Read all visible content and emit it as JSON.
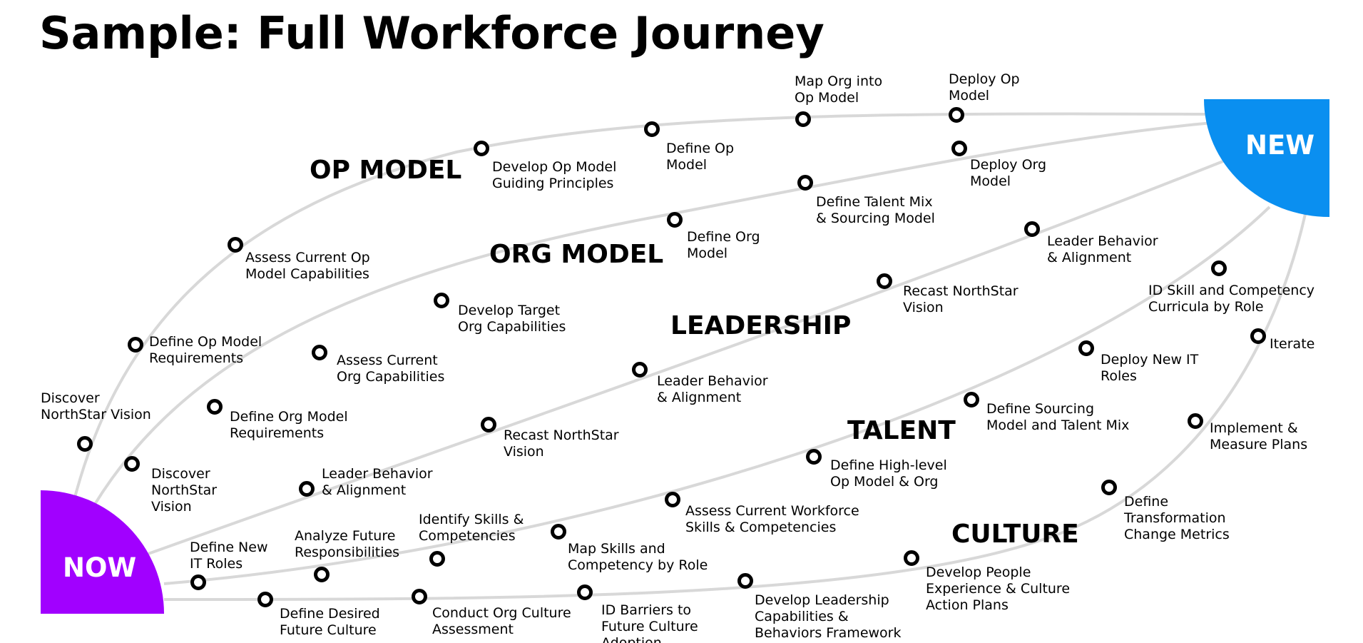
{
  "title": "Sample: Full Workforce Journey",
  "endpoints": {
    "now": {
      "label": "NOW",
      "color": "#A100FF"
    },
    "new": {
      "label": "NEW",
      "color": "#0A8FF0"
    }
  },
  "sections": [
    {
      "id": "op-model",
      "label": "OP MODEL"
    },
    {
      "id": "org-model",
      "label": "ORG MODEL"
    },
    {
      "id": "leadership",
      "label": "LEADERSHIP"
    },
    {
      "id": "talent",
      "label": "TALENT"
    },
    {
      "id": "culture",
      "label": "CULTURE"
    }
  ],
  "milestones": [
    {
      "id": "op-discover",
      "lines": [
        "Discover",
        "NorthStar Vision"
      ]
    },
    {
      "id": "op-define-req",
      "lines": [
        "Define Op Model",
        "Requirements"
      ]
    },
    {
      "id": "op-assess",
      "lines": [
        "Assess Current Op",
        "Model Capabilities"
      ]
    },
    {
      "id": "op-principles",
      "lines": [
        "Develop Op Model",
        "Guiding Principles"
      ]
    },
    {
      "id": "op-define",
      "lines": [
        "Define Op",
        "Model"
      ]
    },
    {
      "id": "op-map",
      "lines": [
        "Map Org into",
        "Op Model"
      ]
    },
    {
      "id": "op-deploy",
      "lines": [
        "Deploy Op",
        "Model"
      ]
    },
    {
      "id": "org-discover",
      "lines": [
        "Discover",
        "NorthStar",
        "Vision"
      ]
    },
    {
      "id": "org-define-req",
      "lines": [
        "Define Org Model",
        "Requirements"
      ]
    },
    {
      "id": "org-assess",
      "lines": [
        "Assess Current",
        "Org Capabilities"
      ]
    },
    {
      "id": "org-target",
      "lines": [
        "Develop Target",
        "Org Capabilities"
      ]
    },
    {
      "id": "org-define",
      "lines": [
        "Define Org",
        "Model"
      ]
    },
    {
      "id": "org-talent-mix",
      "lines": [
        "Define Talent Mix",
        "& Sourcing Model"
      ]
    },
    {
      "id": "org-deploy",
      "lines": [
        "Deploy Org",
        "Model"
      ]
    },
    {
      "id": "lead-behavior-1",
      "lines": [
        "Leader Behavior",
        "& Alignment"
      ]
    },
    {
      "id": "lead-recast-1",
      "lines": [
        "Recast NorthStar",
        "Vision"
      ]
    },
    {
      "id": "lead-behavior-2",
      "lines": [
        "Leader Behavior",
        "& Alignment"
      ]
    },
    {
      "id": "lead-recast-2",
      "lines": [
        "Recast NorthStar",
        "Vision"
      ]
    },
    {
      "id": "lead-behavior-3",
      "lines": [
        "Leader Behavior",
        "& Alignment"
      ]
    },
    {
      "id": "tal-new-roles",
      "lines": [
        "Define New",
        "IT Roles"
      ]
    },
    {
      "id": "tal-analyze",
      "lines": [
        "Analyze Future",
        "Responsibilities"
      ]
    },
    {
      "id": "tal-identify",
      "lines": [
        "Identify Skills &",
        "Competencies"
      ]
    },
    {
      "id": "tal-map",
      "lines": [
        "Map Skills and",
        "Competency by Role"
      ]
    },
    {
      "id": "tal-assess",
      "lines": [
        "Assess Current Workforce",
        "Skills & Competencies"
      ]
    },
    {
      "id": "tal-highlevel",
      "lines": [
        "Define High-level",
        "Op Model & Org"
      ]
    },
    {
      "id": "tal-sourcing",
      "lines": [
        "Define Sourcing",
        "Model and Talent Mix"
      ]
    },
    {
      "id": "tal-deploy-roles",
      "lines": [
        "Deploy New IT",
        "Roles"
      ]
    },
    {
      "id": "tal-curricula",
      "lines": [
        "ID Skill and Competency",
        "Curricula by Role"
      ]
    },
    {
      "id": "cul-desired",
      "lines": [
        "Define Desired",
        "Future Culture"
      ]
    },
    {
      "id": "cul-assessment",
      "lines": [
        "Conduct Org Culture",
        "Assessment"
      ]
    },
    {
      "id": "cul-barriers",
      "lines": [
        "ID Barriers to",
        "Future Culture",
        "Adoption"
      ]
    },
    {
      "id": "cul-framework",
      "lines": [
        "Develop Leadership",
        "Capabilities &",
        "Behaviors Framework"
      ]
    },
    {
      "id": "cul-action",
      "lines": [
        "Develop People",
        "Experience & Culture",
        "Action Plans"
      ]
    },
    {
      "id": "cul-metrics",
      "lines": [
        "Define",
        "Transformation",
        "Change Metrics"
      ]
    },
    {
      "id": "cul-implement",
      "lines": [
        "Implement &",
        "Measure Plans"
      ]
    },
    {
      "id": "cul-iterate",
      "lines": [
        "Iterate"
      ]
    }
  ]
}
